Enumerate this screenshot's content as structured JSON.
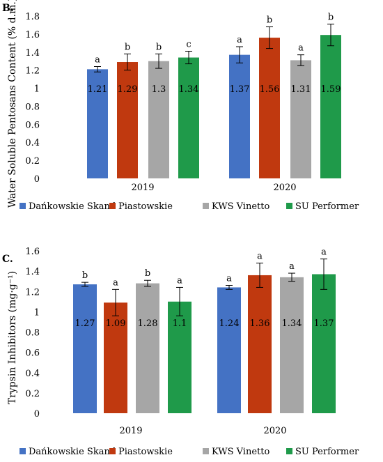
{
  "colors": {
    "Dańkowskie Skand": "#4472c4",
    "Piastowskie": "#c0390f",
    "KWS Vinetto": "#a6a6a6",
    "SU Performer": "#1f9a4a"
  },
  "chart_data": [
    {
      "type": "bar",
      "panel": "B.",
      "ylabel": "Water Soluble Pentosans Content (% d.m.)",
      "ylim": [
        0,
        1.8
      ],
      "yticks": [
        "0",
        "0.2",
        "0.4",
        "0.6",
        "0.8",
        "1",
        "1.2",
        "1.4",
        "1.6",
        "1.8"
      ],
      "categories": [
        "2019",
        "2020"
      ],
      "legend_position": "bottom",
      "series": [
        {
          "name": "Dańkowskie Skand",
          "values": [
            1.21,
            1.37
          ],
          "labels": [
            "1.21",
            "1.37"
          ],
          "errors": [
            0.03,
            0.09
          ],
          "letters": [
            "a",
            "a"
          ]
        },
        {
          "name": "Piastowskie",
          "values": [
            1.29,
            1.56
          ],
          "labels": [
            "1.29",
            "1.56"
          ],
          "errors": [
            0.09,
            0.12
          ],
          "letters": [
            "b",
            "b"
          ]
        },
        {
          "name": "KWS Vinetto",
          "values": [
            1.3,
            1.31
          ],
          "labels": [
            "1.3",
            "1.31"
          ],
          "errors": [
            0.08,
            0.06
          ],
          "letters": [
            "b",
            "a"
          ]
        },
        {
          "name": "SU Performer",
          "values": [
            1.34,
            1.59
          ],
          "labels": [
            "1.34",
            "1.59"
          ],
          "errors": [
            0.07,
            0.12
          ],
          "letters": [
            "c",
            "b"
          ]
        }
      ]
    },
    {
      "type": "bar",
      "panel": "C.",
      "ylabel": "Trypsin Inhibitors (mg·g⁻¹)",
      "ylim": [
        0,
        1.6
      ],
      "yticks": [
        "0",
        "0.2",
        "0.4",
        "0.6",
        "0.8",
        "1",
        "1.2",
        "1.4",
        "1.6"
      ],
      "categories": [
        "2019",
        "2020"
      ],
      "legend_position": "bottom",
      "series": [
        {
          "name": "Dańkowskie Skand",
          "values": [
            1.27,
            1.24
          ],
          "labels": [
            "1.27",
            "1.24"
          ],
          "errors": [
            0.02,
            0.02
          ],
          "letters": [
            "b",
            "a"
          ]
        },
        {
          "name": "Piastowskie",
          "values": [
            1.09,
            1.36
          ],
          "labels": [
            "1.09",
            "1.36"
          ],
          "errors": [
            0.13,
            0.12
          ],
          "letters": [
            "a",
            "a"
          ]
        },
        {
          "name": "KWS Vinetto",
          "values": [
            1.28,
            1.34
          ],
          "labels": [
            "1.28",
            "1.34"
          ],
          "errors": [
            0.03,
            0.04
          ],
          "letters": [
            "b",
            "a"
          ]
        },
        {
          "name": "SU Performer",
          "values": [
            1.1,
            1.37
          ],
          "labels": [
            "1.1",
            "1.37"
          ],
          "errors": [
            0.14,
            0.15
          ],
          "letters": [
            "a",
            "a"
          ]
        }
      ]
    }
  ]
}
